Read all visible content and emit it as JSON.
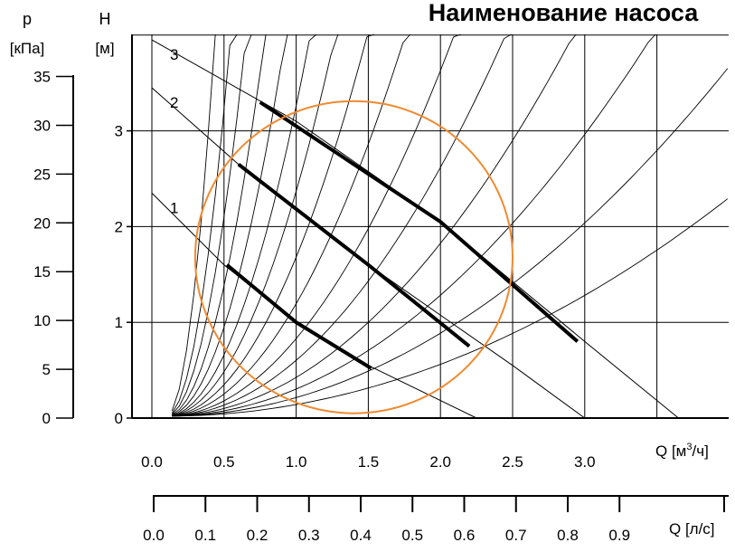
{
  "title": "Наименование насоса",
  "colors": {
    "background": "#ffffff",
    "axes": "#000000",
    "curves": "#000000",
    "highlight_circle": "#f08a30"
  },
  "chart_data": {
    "type": "line",
    "title": "Наименование насоса",
    "grid": true,
    "xlabel": "Q [м³/ч]",
    "xlabel_secondary": "Q [л/с]",
    "ylabel": "H [м]",
    "ylabel_secondary": "p [кПа]",
    "xlim": [
      0,
      4
    ],
    "ylim": [
      0,
      4
    ],
    "x_ticks": [
      "0.0",
      "0.5",
      "1.0",
      "1.5",
      "2.0",
      "2.5",
      "3.0"
    ],
    "x_ticks_secondary": [
      "0.0",
      "0.1",
      "0.2",
      "0.3",
      "0.4",
      "0.5",
      "0.6",
      "0.7",
      "0.8",
      "0.9"
    ],
    "y_ticks": [
      "0",
      "1",
      "2",
      "3"
    ],
    "y_ticks_secondary": [
      "0",
      "5",
      "10",
      "15",
      "20",
      "25",
      "30",
      "35"
    ],
    "pump_curves": [
      {
        "name": "1",
        "points": [
          [
            0,
            2.35
          ],
          [
            0.5,
            1.6
          ],
          [
            1,
            1.0
          ],
          [
            1.5,
            0.55
          ],
          [
            2.25,
            0
          ]
        ]
      },
      {
        "name": "2",
        "points": [
          [
            0,
            3.45
          ],
          [
            0.6,
            2.65
          ],
          [
            1.5,
            1.6
          ],
          [
            2.5,
            0.55
          ],
          [
            3.0,
            0
          ]
        ]
      },
      {
        "name": "3",
        "points": [
          [
            0,
            3.95
          ],
          [
            1.0,
            3.1
          ],
          [
            2.0,
            2.05
          ],
          [
            3.0,
            0.8
          ],
          [
            3.65,
            0
          ]
        ]
      }
    ],
    "operating_ranges": [
      {
        "curve": "1",
        "points": [
          [
            0.52,
            1.6
          ],
          [
            1.0,
            1.0
          ],
          [
            1.52,
            0.52
          ]
        ]
      },
      {
        "curve": "2",
        "points": [
          [
            0.6,
            2.65
          ],
          [
            1.5,
            1.6
          ],
          [
            2.2,
            0.75
          ]
        ]
      },
      {
        "curve": "3",
        "points": [
          [
            0.75,
            3.3
          ],
          [
            2.0,
            2.05
          ],
          [
            2.95,
            0.8
          ]
        ]
      }
    ],
    "system_curve_k": [
      35,
      20,
      13,
      8.5,
      5.8,
      4.0,
      2.9,
      2.05,
      1.45,
      1.0,
      0.72,
      0.5,
      0.35,
      0.24,
      0.15
    ],
    "highlight_circle": {
      "cx": 1.4,
      "cy": 1.68,
      "rx": 1.1,
      "ry": 1.63
    }
  }
}
